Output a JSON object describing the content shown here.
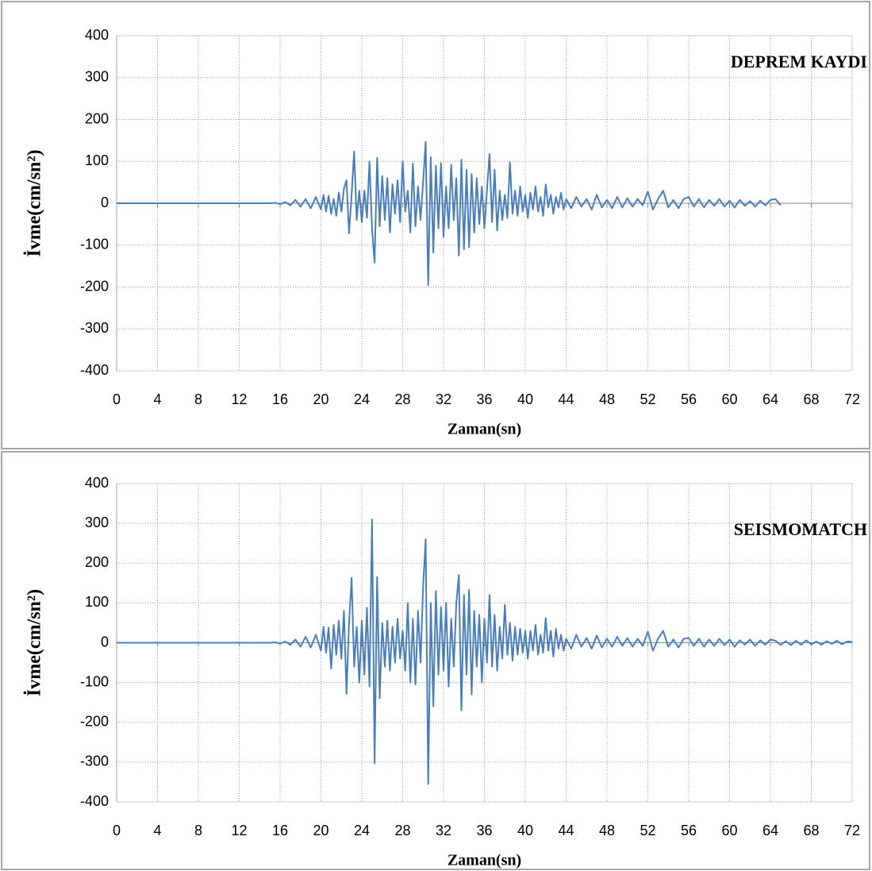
{
  "chart_data": [
    {
      "type": "line",
      "title": "DEPREM KAYDI",
      "x_label": "Zaman(sn)",
      "y_label": "İvme(cm/sn²)",
      "color": "#4a7ebb",
      "grid": true,
      "xlim": [
        0,
        72
      ],
      "ylim": [
        -400,
        400
      ],
      "xticks": [
        0,
        4,
        8,
        12,
        16,
        20,
        24,
        28,
        32,
        36,
        40,
        44,
        48,
        52,
        56,
        60,
        64,
        68,
        72
      ],
      "yticks": [
        -400,
        -300,
        -200,
        -100,
        0,
        100,
        200,
        300,
        400
      ],
      "x": [
        0,
        15,
        15.5,
        16,
        16.5,
        17,
        17.5,
        18,
        18.5,
        19,
        19.5,
        20,
        20.25,
        20.5,
        20.75,
        21,
        21.25,
        21.5,
        21.75,
        22,
        22.25,
        22.5,
        22.75,
        23,
        23.25,
        23.5,
        23.75,
        24,
        24.25,
        24.5,
        24.75,
        25,
        25.25,
        25.5,
        25.75,
        26,
        26.25,
        26.5,
        26.75,
        27,
        27.25,
        27.5,
        27.75,
        28,
        28.25,
        28.5,
        28.75,
        29,
        29.25,
        29.5,
        29.75,
        30,
        30.25,
        30.5,
        30.75,
        31,
        31.25,
        31.5,
        31.75,
        32,
        32.25,
        32.5,
        32.75,
        33,
        33.25,
        33.5,
        33.75,
        34,
        34.25,
        34.5,
        34.75,
        35,
        35.25,
        35.5,
        35.75,
        36,
        36.25,
        36.5,
        36.75,
        37,
        37.25,
        37.5,
        37.75,
        38,
        38.25,
        38.5,
        38.75,
        39,
        39.25,
        39.5,
        39.75,
        40,
        40.25,
        40.5,
        40.75,
        41,
        41.25,
        41.5,
        41.75,
        42,
        42.25,
        42.5,
        42.75,
        43,
        43.25,
        43.5,
        43.75,
        44,
        44.5,
        45,
        45.5,
        46,
        46.5,
        47,
        47.5,
        48,
        48.5,
        49,
        49.5,
        50,
        50.5,
        51,
        51.5,
        52,
        52.5,
        53,
        53.5,
        54,
        54.5,
        55,
        55.5,
        56,
        56.5,
        57,
        57.5,
        58,
        58.5,
        59,
        59.5,
        60,
        60.5,
        61,
        61.5,
        62,
        62.5,
        63,
        63.5,
        64,
        64.5,
        65
      ],
      "values": [
        0,
        0,
        1,
        -2,
        3,
        -5,
        8,
        -8,
        10,
        -12,
        15,
        -15,
        20,
        -20,
        18,
        -25,
        10,
        -30,
        25,
        -20,
        35,
        55,
        -72,
        20,
        124,
        -40,
        30,
        -45,
        30,
        -35,
        100,
        -60,
        -142,
        108,
        -55,
        65,
        -40,
        60,
        -70,
        45,
        -25,
        55,
        -45,
        100,
        -20,
        30,
        -70,
        95,
        -55,
        40,
        -40,
        50,
        147,
        -195,
        110,
        -118,
        90,
        -60,
        96,
        -80,
        40,
        -60,
        92,
        -40,
        60,
        -125,
        104,
        -110,
        80,
        -105,
        70,
        -70,
        60,
        -50,
        40,
        -60,
        30,
        118,
        -45,
        80,
        -65,
        30,
        -40,
        20,
        -35,
        98,
        -25,
        30,
        -30,
        40,
        -20,
        20,
        -35,
        25,
        -15,
        40,
        -20,
        15,
        -30,
        45,
        -10,
        20,
        -25,
        15,
        -10,
        25,
        -15,
        10,
        -12,
        15,
        -8,
        10,
        -15,
        20,
        -10,
        8,
        -12,
        15,
        -10,
        12,
        -8,
        10,
        -5,
        28,
        -15,
        10,
        30,
        -10,
        8,
        -12,
        10,
        15,
        -8,
        10,
        -10,
        8,
        -6,
        10,
        -8,
        6,
        -10,
        8,
        -6,
        5,
        -8,
        6,
        -5,
        8,
        10,
        -5
      ]
    },
    {
      "type": "line",
      "title": "SEISMOMATCH",
      "x_label": "Zaman(sn)",
      "y_label": "İvme(cm/sn²)",
      "color": "#4a7ebb",
      "grid": true,
      "xlim": [
        0,
        72
      ],
      "ylim": [
        -400,
        400
      ],
      "xticks": [
        0,
        4,
        8,
        12,
        16,
        20,
        24,
        28,
        32,
        36,
        40,
        44,
        48,
        52,
        56,
        60,
        64,
        68,
        72
      ],
      "yticks": [
        -400,
        -300,
        -200,
        -100,
        0,
        100,
        200,
        300,
        400
      ],
      "x": [
        0,
        15,
        15.5,
        16,
        16.5,
        17,
        17.5,
        18,
        18.5,
        19,
        19.5,
        20,
        20.25,
        20.5,
        20.75,
        21,
        21.25,
        21.5,
        21.75,
        22,
        22.25,
        22.5,
        22.75,
        23,
        23.25,
        23.5,
        23.75,
        24,
        24.25,
        24.5,
        24.75,
        25,
        25.25,
        25.5,
        25.75,
        26,
        26.25,
        26.5,
        26.75,
        27,
        27.25,
        27.5,
        27.75,
        28,
        28.25,
        28.5,
        28.75,
        29,
        29.25,
        29.5,
        29.75,
        30,
        30.25,
        30.5,
        30.75,
        31,
        31.25,
        31.5,
        31.75,
        32,
        32.25,
        32.5,
        32.75,
        33,
        33.25,
        33.5,
        33.75,
        34,
        34.25,
        34.5,
        34.75,
        35,
        35.25,
        35.5,
        35.75,
        36,
        36.25,
        36.5,
        36.75,
        37,
        37.25,
        37.5,
        37.75,
        38,
        38.25,
        38.5,
        38.75,
        39,
        39.25,
        39.5,
        39.75,
        40,
        40.25,
        40.5,
        40.75,
        41,
        41.25,
        41.5,
        41.75,
        42,
        42.25,
        42.5,
        42.75,
        43,
        43.25,
        43.5,
        43.75,
        44,
        44.5,
        45,
        45.5,
        46,
        46.5,
        47,
        47.5,
        48,
        48.5,
        49,
        49.5,
        50,
        50.5,
        51,
        51.5,
        52,
        52.5,
        53,
        53.5,
        54,
        54.5,
        55,
        55.5,
        56,
        56.5,
        57,
        57.5,
        58,
        58.5,
        59,
        59.5,
        60,
        60.5,
        61,
        61.5,
        62,
        62.5,
        63,
        63.5,
        64,
        64.5,
        65,
        65.5,
        66,
        66.5,
        67,
        67.5,
        68,
        68.5,
        69,
        69.5,
        70,
        70.5,
        71,
        71.5,
        72
      ],
      "values": [
        0,
        0,
        1,
        -2,
        3,
        -5,
        8,
        -10,
        15,
        -12,
        20,
        -20,
        40,
        -25,
        38,
        -65,
        45,
        -30,
        55,
        -40,
        80,
        -128,
        50,
        163,
        -60,
        40,
        -100,
        55,
        -80,
        88,
        -110,
        310,
        -303,
        165,
        -140,
        50,
        -60,
        55,
        -70,
        40,
        -50,
        60,
        -40,
        30,
        -70,
        100,
        -100,
        60,
        -105,
        80,
        -50,
        140,
        260,
        -355,
        100,
        -160,
        130,
        -80,
        90,
        -70,
        100,
        -110,
        60,
        -60,
        100,
        170,
        -170,
        120,
        -80,
        133,
        -130,
        80,
        -60,
        70,
        -100,
        60,
        -50,
        120,
        -60,
        70,
        -70,
        40,
        -40,
        95,
        -30,
        50,
        -45,
        40,
        -30,
        35,
        -25,
        30,
        -40,
        30,
        -20,
        45,
        -30,
        20,
        -25,
        62,
        -20,
        30,
        -35,
        35,
        -15,
        20,
        -20,
        10,
        -15,
        20,
        -10,
        12,
        -15,
        18,
        -12,
        10,
        -10,
        15,
        -8,
        12,
        -10,
        10,
        -8,
        28,
        -20,
        10,
        30,
        -10,
        8,
        -12,
        10,
        12,
        -8,
        10,
        -10,
        8,
        -8,
        10,
        -6,
        8,
        -10,
        6,
        -5,
        8,
        -8,
        6,
        -5,
        8,
        5,
        -6,
        4,
        -6,
        5,
        -5,
        6,
        -4,
        3,
        -5,
        4,
        -3,
        5,
        -4,
        3,
        2
      ]
    }
  ]
}
